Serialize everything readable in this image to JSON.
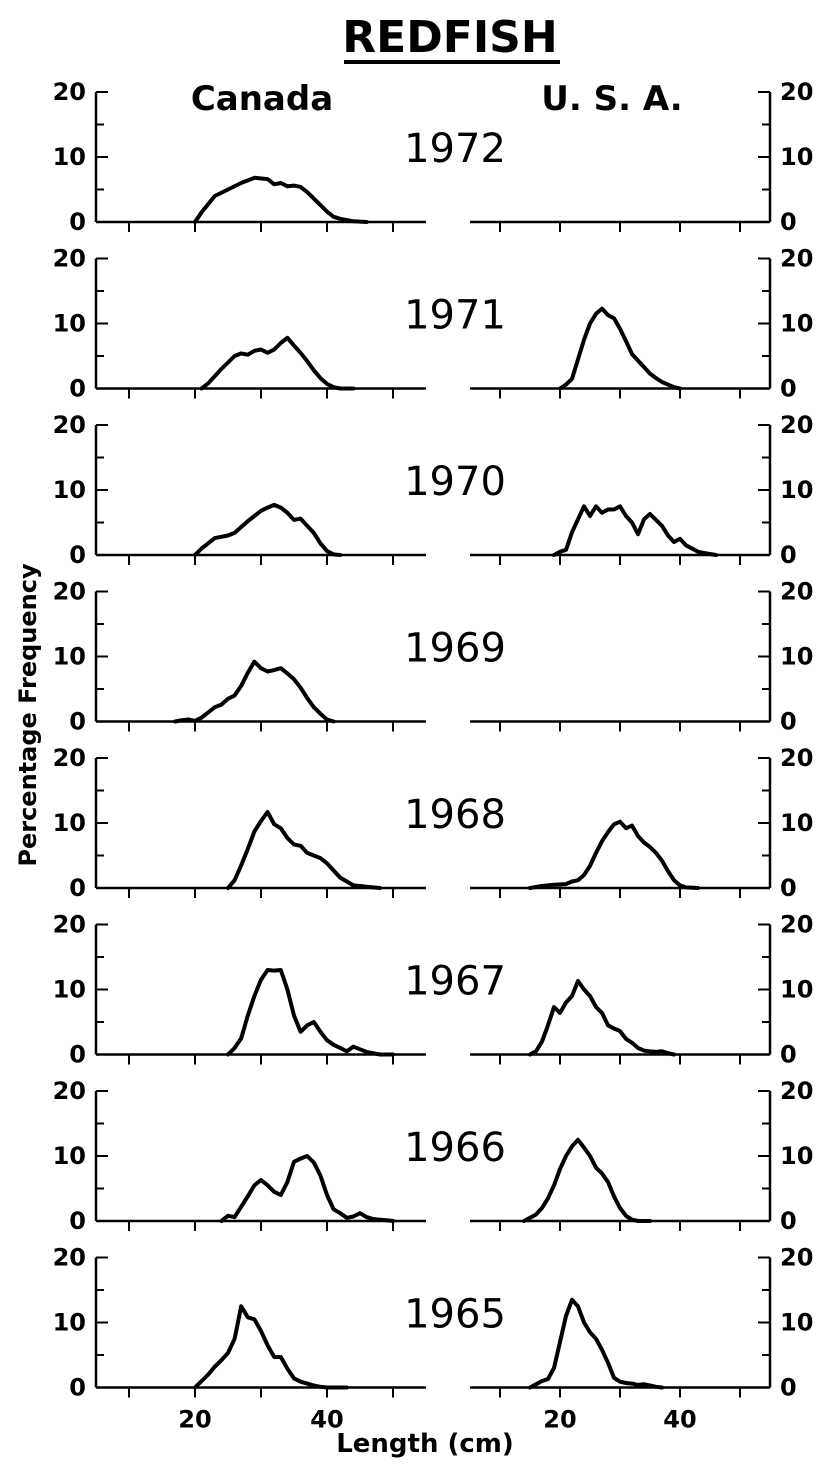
{
  "chart_data": {
    "type": "line",
    "title": "REDFISH",
    "xlabel": "Length (cm)",
    "ylabel": "Percentage Frequency",
    "columns": [
      "Canada",
      "U. S. A."
    ],
    "xlim": [
      5,
      55
    ],
    "ylim": [
      0,
      20
    ],
    "x_tick_labels": [
      20,
      40
    ],
    "y_ticks": [
      0,
      10,
      20
    ],
    "panels": [
      {
        "year": "1972",
        "canada": [
          [
            20,
            0
          ],
          [
            21,
            1.5
          ],
          [
            23,
            4
          ],
          [
            25,
            5
          ],
          [
            27,
            6
          ],
          [
            29,
            6.8
          ],
          [
            31,
            6.6
          ],
          [
            32,
            5.8
          ],
          [
            33,
            6
          ],
          [
            34,
            5.5
          ],
          [
            35,
            5.6
          ],
          [
            36,
            5.4
          ],
          [
            37,
            4.6
          ],
          [
            38,
            3.6
          ],
          [
            39,
            2.6
          ],
          [
            40,
            1.6
          ],
          [
            41,
            0.8
          ],
          [
            42,
            0.5
          ],
          [
            43,
            0.3
          ],
          [
            44,
            0.1
          ],
          [
            46,
            0
          ]
        ],
        "usa": []
      },
      {
        "year": "1971",
        "canada": [
          [
            21,
            0
          ],
          [
            22,
            0.8
          ],
          [
            24,
            3
          ],
          [
            26,
            5
          ],
          [
            27,
            5.4
          ],
          [
            28,
            5.2
          ],
          [
            29,
            5.8
          ],
          [
            30,
            6
          ],
          [
            31,
            5.5
          ],
          [
            32,
            6
          ],
          [
            33,
            7
          ],
          [
            34,
            7.8
          ],
          [
            35,
            6.6
          ],
          [
            36,
            5.5
          ],
          [
            37,
            4.2
          ],
          [
            38,
            2.8
          ],
          [
            39,
            1.6
          ],
          [
            40,
            0.7
          ],
          [
            41,
            0.2
          ],
          [
            42,
            0
          ],
          [
            44,
            0
          ]
        ],
        "usa": [
          [
            20,
            0
          ],
          [
            21,
            0.6
          ],
          [
            22,
            1.5
          ],
          [
            23,
            4.5
          ],
          [
            24,
            7.5
          ],
          [
            25,
            10
          ],
          [
            26,
            11.5
          ],
          [
            27,
            12.3
          ],
          [
            28,
            11.3
          ],
          [
            29,
            10.8
          ],
          [
            30,
            9.2
          ],
          [
            31,
            7.3
          ],
          [
            32,
            5.3
          ],
          [
            33,
            4.3
          ],
          [
            34,
            3.3
          ],
          [
            35,
            2.3
          ],
          [
            36,
            1.6
          ],
          [
            37,
            1
          ],
          [
            38,
            0.6
          ],
          [
            39,
            0.2
          ],
          [
            40,
            0
          ]
        ]
      },
      {
        "year": "1970",
        "canada": [
          [
            20,
            0
          ],
          [
            21,
            1
          ],
          [
            22,
            1.8
          ],
          [
            23,
            2.6
          ],
          [
            24,
            2.8
          ],
          [
            25,
            3
          ],
          [
            26,
            3.4
          ],
          [
            27,
            4.3
          ],
          [
            28,
            5.2
          ],
          [
            29,
            6
          ],
          [
            30,
            6.8
          ],
          [
            31,
            7.3
          ],
          [
            32,
            7.7
          ],
          [
            33,
            7.3
          ],
          [
            34,
            6.5
          ],
          [
            35,
            5.4
          ],
          [
            36,
            5.6
          ],
          [
            37,
            4.5
          ],
          [
            38,
            3.4
          ],
          [
            39,
            1.8
          ],
          [
            40,
            0.6
          ],
          [
            41,
            0.1
          ],
          [
            42,
            0
          ]
        ],
        "usa": [
          [
            19,
            0
          ],
          [
            20,
            0.5
          ],
          [
            21,
            0.8
          ],
          [
            22,
            3.5
          ],
          [
            23,
            5.5
          ],
          [
            24,
            7.5
          ],
          [
            25,
            6
          ],
          [
            26,
            7.5
          ],
          [
            27,
            6.5
          ],
          [
            28,
            7
          ],
          [
            29,
            7
          ],
          [
            30,
            7.5
          ],
          [
            31,
            6
          ],
          [
            32,
            5
          ],
          [
            33,
            3.2
          ],
          [
            34,
            5.5
          ],
          [
            35,
            6.3
          ],
          [
            36,
            5.4
          ],
          [
            37,
            4.5
          ],
          [
            38,
            3
          ],
          [
            39,
            2
          ],
          [
            40,
            2.5
          ],
          [
            41,
            1.5
          ],
          [
            42,
            1
          ],
          [
            43,
            0.5
          ],
          [
            44,
            0.3
          ],
          [
            46,
            0
          ]
        ]
      },
      {
        "year": "1969",
        "canada": [
          [
            17,
            0
          ],
          [
            18,
            0.2
          ],
          [
            19,
            0.3
          ],
          [
            20,
            0.1
          ],
          [
            21,
            0.6
          ],
          [
            22,
            1.4
          ],
          [
            23,
            2.2
          ],
          [
            24,
            2.6
          ],
          [
            25,
            3.5
          ],
          [
            26,
            4
          ],
          [
            27,
            5.5
          ],
          [
            28,
            7.5
          ],
          [
            29,
            9.2
          ],
          [
            30,
            8.2
          ],
          [
            31,
            7.7
          ],
          [
            32,
            7.9
          ],
          [
            33,
            8.2
          ],
          [
            34,
            7.4
          ],
          [
            35,
            6.5
          ],
          [
            36,
            5.2
          ],
          [
            37,
            3.6
          ],
          [
            38,
            2.2
          ],
          [
            39,
            1.2
          ],
          [
            40,
            0.3
          ],
          [
            41,
            0
          ]
        ],
        "usa": []
      },
      {
        "year": "1968",
        "canada": [
          [
            25,
            0
          ],
          [
            26,
            1.2
          ],
          [
            27,
            3.5
          ],
          [
            28,
            6
          ],
          [
            29,
            8.7
          ],
          [
            30,
            10.3
          ],
          [
            31,
            11.7
          ],
          [
            32,
            9.8
          ],
          [
            33,
            9.2
          ],
          [
            34,
            7.7
          ],
          [
            35,
            6.7
          ],
          [
            36,
            6.5
          ],
          [
            37,
            5.4
          ],
          [
            38,
            5
          ],
          [
            39,
            4.6
          ],
          [
            40,
            3.8
          ],
          [
            41,
            2.7
          ],
          [
            42,
            1.6
          ],
          [
            43,
            1
          ],
          [
            44,
            0.4
          ],
          [
            45,
            0.3
          ],
          [
            46,
            0.2
          ],
          [
            47,
            0.1
          ],
          [
            48,
            0
          ]
        ],
        "usa": [
          [
            15,
            0
          ],
          [
            17,
            0.3
          ],
          [
            19,
            0.5
          ],
          [
            21,
            0.6
          ],
          [
            22,
            1
          ],
          [
            23,
            1.2
          ],
          [
            24,
            2
          ],
          [
            25,
            3.4
          ],
          [
            26,
            5.4
          ],
          [
            27,
            7.2
          ],
          [
            28,
            8.6
          ],
          [
            29,
            9.8
          ],
          [
            30,
            10.2
          ],
          [
            31,
            9.2
          ],
          [
            32,
            9.6
          ],
          [
            33,
            8
          ],
          [
            34,
            7
          ],
          [
            35,
            6.3
          ],
          [
            36,
            5.4
          ],
          [
            37,
            4.2
          ],
          [
            38,
            2.6
          ],
          [
            39,
            1.2
          ],
          [
            40,
            0.4
          ],
          [
            41,
            0.1
          ],
          [
            43,
            0
          ]
        ]
      },
      {
        "year": "1967",
        "canada": [
          [
            25,
            0
          ],
          [
            26,
            1
          ],
          [
            27,
            2.5
          ],
          [
            28,
            6
          ],
          [
            29,
            9
          ],
          [
            30,
            11.5
          ],
          [
            31,
            13
          ],
          [
            32,
            12.9
          ],
          [
            33,
            13
          ],
          [
            34,
            10
          ],
          [
            35,
            6
          ],
          [
            36,
            3.5
          ],
          [
            37,
            4.5
          ],
          [
            38,
            5
          ],
          [
            39,
            3.5
          ],
          [
            40,
            2.2
          ],
          [
            41,
            1.5
          ],
          [
            42,
            1
          ],
          [
            43,
            0.5
          ],
          [
            44,
            1.2
          ],
          [
            45,
            0.8
          ],
          [
            46,
            0.4
          ],
          [
            47,
            0.2
          ],
          [
            48,
            0
          ],
          [
            50,
            0
          ]
        ],
        "usa": [
          [
            15,
            0
          ],
          [
            16,
            0.5
          ],
          [
            17,
            2
          ],
          [
            18,
            4.5
          ],
          [
            19,
            7.3
          ],
          [
            20,
            6.4
          ],
          [
            21,
            8
          ],
          [
            22,
            9
          ],
          [
            23,
            11.3
          ],
          [
            24,
            10
          ],
          [
            25,
            9
          ],
          [
            26,
            7.3
          ],
          [
            27,
            6.4
          ],
          [
            28,
            4.5
          ],
          [
            29,
            4
          ],
          [
            30,
            3.6
          ],
          [
            31,
            2.4
          ],
          [
            32,
            1.8
          ],
          [
            33,
            1
          ],
          [
            34,
            0.6
          ],
          [
            35,
            0.5
          ],
          [
            36,
            0.4
          ],
          [
            37,
            0.5
          ],
          [
            38,
            0.2
          ],
          [
            39,
            0
          ]
        ]
      },
      {
        "year": "1966",
        "canada": [
          [
            24,
            0
          ],
          [
            25,
            0.8
          ],
          [
            26,
            0.6
          ],
          [
            27,
            2.2
          ],
          [
            28,
            3.8
          ],
          [
            29,
            5.5
          ],
          [
            30,
            6.3
          ],
          [
            31,
            5.5
          ],
          [
            32,
            4.5
          ],
          [
            33,
            4
          ],
          [
            34,
            6
          ],
          [
            35,
            9.1
          ],
          [
            36,
            9.6
          ],
          [
            37,
            10
          ],
          [
            38,
            9
          ],
          [
            39,
            7
          ],
          [
            40,
            4
          ],
          [
            41,
            1.8
          ],
          [
            42,
            1.2
          ],
          [
            43,
            0.5
          ],
          [
            44,
            0.7
          ],
          [
            45,
            1.2
          ],
          [
            46,
            0.6
          ],
          [
            47,
            0.3
          ],
          [
            48,
            0.2
          ],
          [
            49,
            0.1
          ],
          [
            50,
            0
          ]
        ],
        "usa": [
          [
            14,
            0
          ],
          [
            15,
            0.5
          ],
          [
            16,
            1
          ],
          [
            17,
            2
          ],
          [
            18,
            3.5
          ],
          [
            19,
            5.5
          ],
          [
            20,
            8
          ],
          [
            21,
            10
          ],
          [
            22,
            11.5
          ],
          [
            23,
            12.5
          ],
          [
            24,
            11.3
          ],
          [
            25,
            10
          ],
          [
            26,
            8.2
          ],
          [
            27,
            7.3
          ],
          [
            28,
            6
          ],
          [
            29,
            3.8
          ],
          [
            30,
            2
          ],
          [
            31,
            0.8
          ],
          [
            32,
            0.2
          ],
          [
            33,
            0
          ],
          [
            35,
            0
          ]
        ]
      },
      {
        "year": "1965",
        "canada": [
          [
            20,
            0
          ],
          [
            21,
            1
          ],
          [
            22,
            2
          ],
          [
            23,
            3.2
          ],
          [
            24,
            4.2
          ],
          [
            25,
            5.3
          ],
          [
            26,
            7.5
          ],
          [
            27,
            12.5
          ],
          [
            28,
            10.8
          ],
          [
            29,
            10.5
          ],
          [
            30,
            8.7
          ],
          [
            31,
            6.5
          ],
          [
            32,
            4.7
          ],
          [
            33,
            4.7
          ],
          [
            34,
            2.9
          ],
          [
            35,
            1.4
          ],
          [
            36,
            0.9
          ],
          [
            37,
            0.6
          ],
          [
            38,
            0.3
          ],
          [
            39,
            0.1
          ],
          [
            40,
            0
          ],
          [
            43,
            0
          ]
        ],
        "usa": [
          [
            15,
            0
          ],
          [
            16,
            0.5
          ],
          [
            17,
            1
          ],
          [
            18,
            1.3
          ],
          [
            19,
            3
          ],
          [
            20,
            7
          ],
          [
            21,
            11
          ],
          [
            22,
            13.5
          ],
          [
            23,
            12.5
          ],
          [
            24,
            10
          ],
          [
            25,
            8.5
          ],
          [
            26,
            7.5
          ],
          [
            27,
            5.8
          ],
          [
            28,
            3.8
          ],
          [
            29,
            1.5
          ],
          [
            30,
            0.9
          ],
          [
            31,
            0.7
          ],
          [
            32,
            0.6
          ],
          [
            33,
            0.4
          ],
          [
            34,
            0.5
          ],
          [
            35,
            0.3
          ],
          [
            36,
            0.1
          ],
          [
            37,
            0
          ]
        ]
      }
    ]
  }
}
